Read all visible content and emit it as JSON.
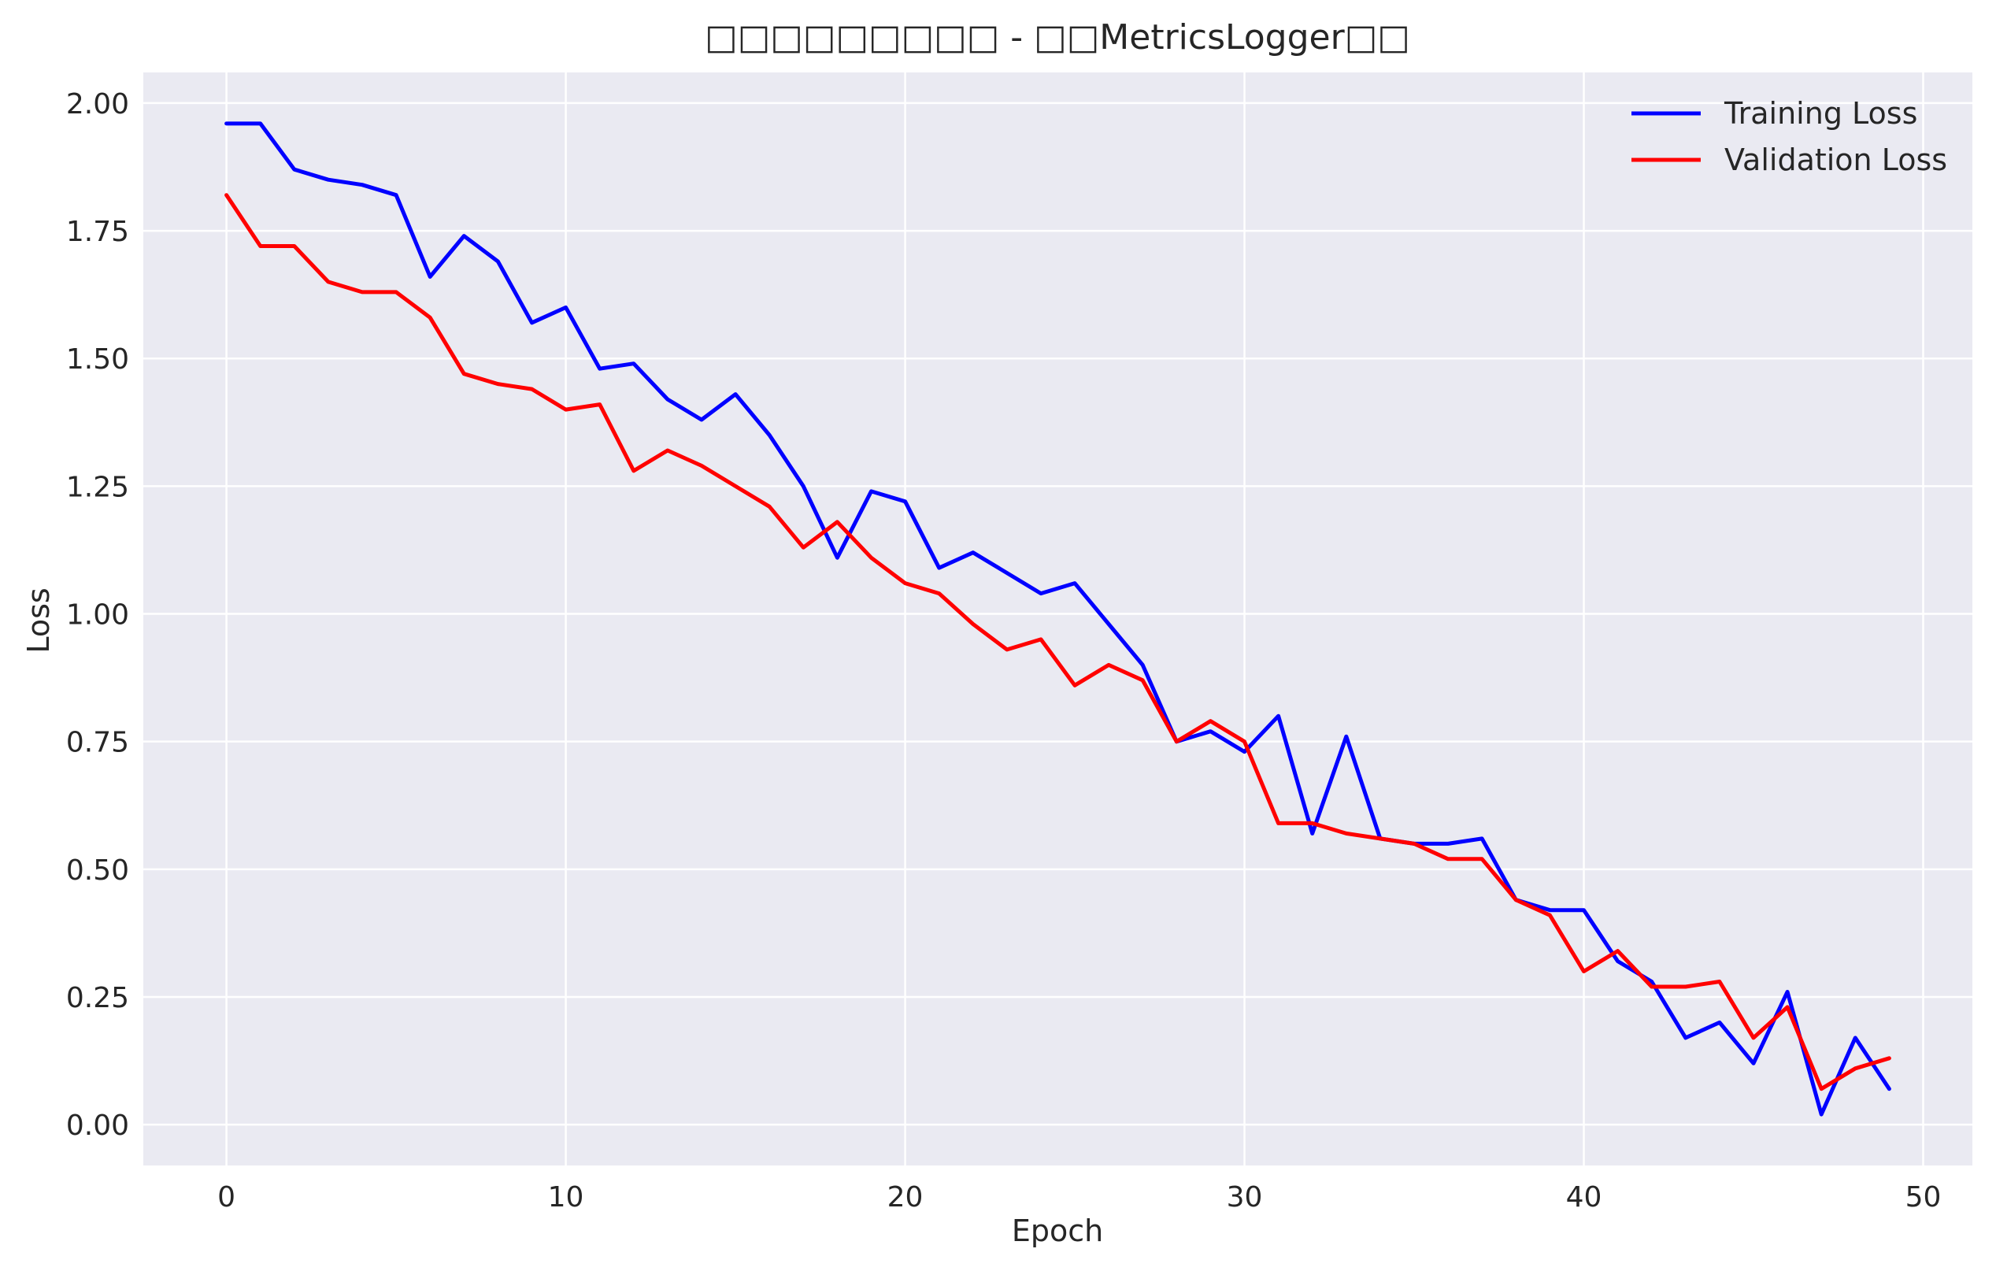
{
  "chart_data": {
    "type": "line",
    "title": "□□□□□□□□□ - □□MetricsLogger□□",
    "xlabel": "Epoch",
    "ylabel": "Loss",
    "xlim": [
      -2.45,
      51.45
    ],
    "ylim": [
      -0.08,
      2.06
    ],
    "xticks": [
      0,
      10,
      20,
      30,
      40,
      50
    ],
    "xtick_labels": [
      "0",
      "10",
      "20",
      "30",
      "40",
      "50"
    ],
    "yticks": [
      0,
      0.25,
      0.5,
      0.75,
      1.0,
      1.25,
      1.5,
      1.75,
      2.0
    ],
    "ytick_labels": [
      "0.00",
      "0.25",
      "0.50",
      "0.75",
      "1.00",
      "1.25",
      "1.50",
      "1.75",
      "2.00"
    ],
    "grid": true,
    "legend_position": "top-right",
    "x": [
      0,
      1,
      2,
      3,
      4,
      5,
      6,
      7,
      8,
      9,
      10,
      11,
      12,
      13,
      14,
      15,
      16,
      17,
      18,
      19,
      20,
      21,
      22,
      23,
      24,
      25,
      26,
      27,
      28,
      29,
      30,
      31,
      32,
      33,
      34,
      35,
      36,
      37,
      38,
      39,
      40,
      41,
      42,
      43,
      44,
      45,
      46,
      47,
      48,
      49
    ],
    "series": [
      {
        "name": "Training Loss",
        "color": "#0000ff",
        "values": [
          1.96,
          1.96,
          1.87,
          1.85,
          1.84,
          1.82,
          1.66,
          1.74,
          1.69,
          1.57,
          1.6,
          1.48,
          1.49,
          1.42,
          1.38,
          1.43,
          1.35,
          1.25,
          1.11,
          1.24,
          1.22,
          1.09,
          1.12,
          1.08,
          1.04,
          1.06,
          0.98,
          0.9,
          0.75,
          0.77,
          0.73,
          0.8,
          0.57,
          0.76,
          0.56,
          0.55,
          0.55,
          0.56,
          0.44,
          0.42,
          0.42,
          0.32,
          0.28,
          0.17,
          0.2,
          0.12,
          0.26,
          0.02,
          0.17,
          0.07
        ]
      },
      {
        "name": "Validation Loss",
        "color": "#ff0000",
        "values": [
          1.82,
          1.72,
          1.72,
          1.65,
          1.63,
          1.63,
          1.58,
          1.47,
          1.45,
          1.44,
          1.4,
          1.41,
          1.28,
          1.32,
          1.29,
          1.25,
          1.21,
          1.13,
          1.18,
          1.11,
          1.06,
          1.04,
          0.98,
          0.93,
          0.95,
          0.86,
          0.9,
          0.87,
          0.75,
          0.79,
          0.75,
          0.59,
          0.59,
          0.57,
          0.56,
          0.55,
          0.52,
          0.52,
          0.44,
          0.41,
          0.3,
          0.34,
          0.27,
          0.27,
          0.28,
          0.17,
          0.23,
          0.07,
          0.11,
          0.13
        ]
      }
    ],
    "colors": {
      "plot_background": "#eaeaf2",
      "grid": "#ffffff",
      "text": "#262626"
    }
  }
}
